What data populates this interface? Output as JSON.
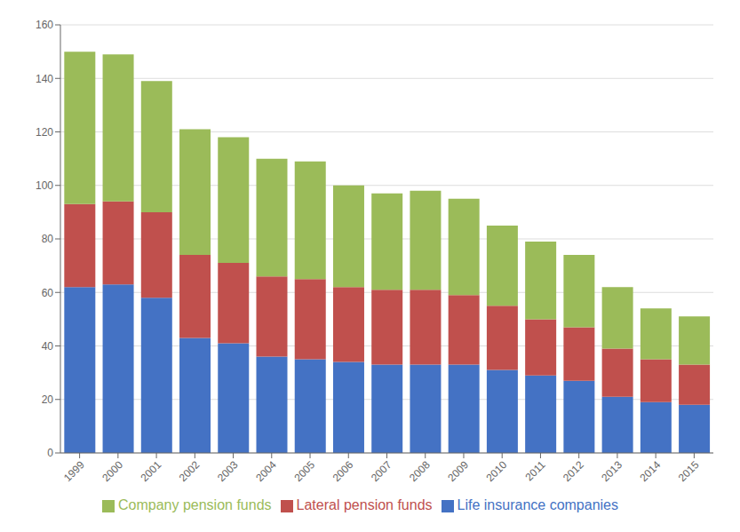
{
  "chart_data": {
    "type": "bar",
    "stacked": true,
    "categories": [
      "1999",
      "2000",
      "2001",
      "2002",
      "2003",
      "2004",
      "2005",
      "2006",
      "2007",
      "2008",
      "2009",
      "2010",
      "2011",
      "2012",
      "2013",
      "2014",
      "2015"
    ],
    "series": [
      {
        "name": "Life insurance companies",
        "color": "#4472C4",
        "values": [
          62,
          63,
          58,
          43,
          41,
          36,
          35,
          34,
          33,
          33,
          33,
          31,
          29,
          27,
          21,
          19,
          18
        ]
      },
      {
        "name": "Lateral pension funds",
        "color": "#C0504D",
        "values": [
          31,
          31,
          32,
          31,
          30,
          30,
          30,
          28,
          28,
          28,
          26,
          24,
          21,
          20,
          18,
          16,
          15
        ]
      },
      {
        "name": "Company pension funds",
        "color": "#9BBB59",
        "values": [
          57,
          55,
          49,
          47,
          47,
          44,
          44,
          38,
          36,
          37,
          36,
          30,
          29,
          27,
          23,
          19,
          18
        ]
      }
    ],
    "ylim": [
      0,
      160
    ],
    "yticks": [
      0,
      20,
      40,
      60,
      80,
      100,
      120,
      140,
      160
    ],
    "grid": true,
    "legend": "bottom"
  }
}
